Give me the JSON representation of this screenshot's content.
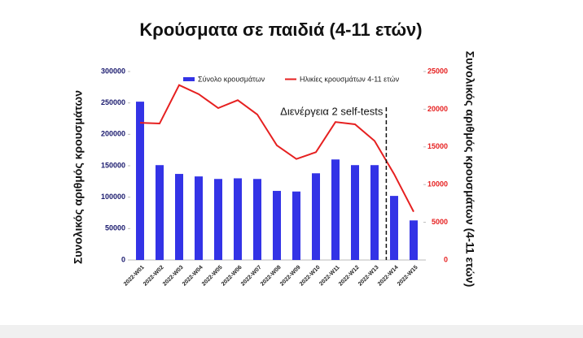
{
  "chart_data": {
    "type": "bar-line",
    "title": "Κρούσματα σε παιδιά (4-11 ετών)",
    "y_label": "Συνολικός αριθμός κρουσμάτων",
    "y2_label": "Συνολικός αριθμός κρουσμάτων (4-11 ετών)",
    "categories": [
      "2022-W01",
      "2022-W02",
      "2022-W03",
      "2022-W04",
      "2022-W05",
      "2022-W06",
      "2022-W07",
      "2022-W08",
      "2022-W09",
      "2022-W10",
      "2022-W11",
      "2022-W12",
      "2022-W13",
      "2022-W14",
      "2022-W15"
    ],
    "series": [
      {
        "name": "Σύνολο κρουσμάτων",
        "type": "bar",
        "color": "#3333e6",
        "values": [
          252000,
          151000,
          137000,
          133000,
          129000,
          130000,
          129000,
          110000,
          109000,
          138000,
          160000,
          151000,
          151000,
          102000,
          63000
        ]
      },
      {
        "name": "Ηλικίες κρουσμάτων 4-11 ετών",
        "type": "line",
        "axis": "y2",
        "color": "#e62020",
        "values": [
          18200,
          18100,
          23200,
          22000,
          20150,
          21200,
          19300,
          15200,
          13400,
          14300,
          18300,
          18000,
          15800,
          11400,
          6400
        ]
      }
    ],
    "ylim": [
      0,
      300000
    ],
    "yticks": [
      0,
      50000,
      100000,
      150000,
      200000,
      250000,
      300000
    ],
    "y2lim": [
      0,
      25000
    ],
    "y2ticks": [
      0,
      5000,
      10000,
      15000,
      20000,
      25000
    ],
    "annotation": {
      "text": "Διενέργεια 2 self-tests",
      "after": "2022-W13"
    }
  }
}
